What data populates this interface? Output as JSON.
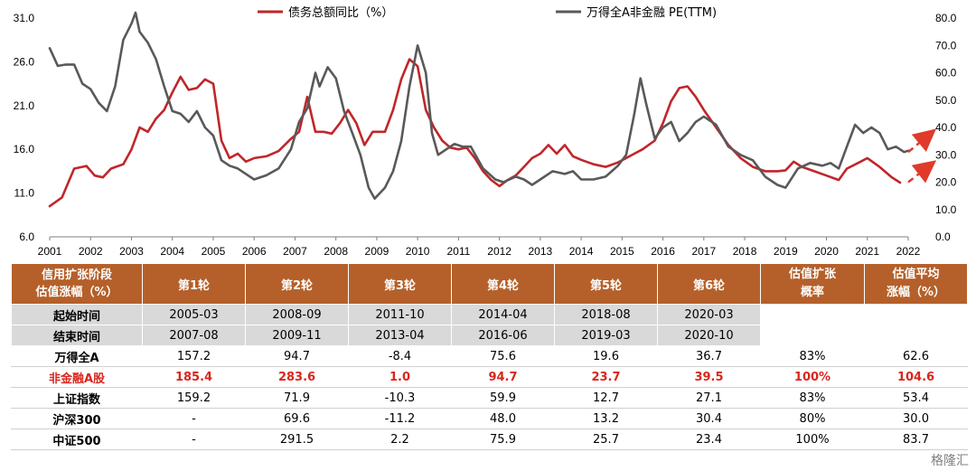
{
  "chart_data": {
    "type": "line",
    "x_ticks": [
      "2001",
      "2002",
      "2003",
      "2004",
      "2005",
      "2006",
      "2007",
      "2008",
      "2009",
      "2010",
      "2011",
      "2012",
      "2013",
      "2014",
      "2015",
      "2016",
      "2017",
      "2018",
      "2019",
      "2020",
      "2021",
      "2022"
    ],
    "y_left": {
      "ticks": [
        "6.0",
        "11.0",
        "16.0",
        "21.0",
        "26.0",
        "31.0"
      ],
      "lim": [
        6,
        31
      ]
    },
    "y_right": {
      "ticks": [
        "0.0",
        "10.0",
        "20.0",
        "30.0",
        "40.0",
        "50.0",
        "60.0",
        "70.0",
        "80.0"
      ],
      "lim": [
        0,
        80
      ]
    },
    "grid": false,
    "legend_position": "top",
    "series": [
      {
        "name": "债务总额同比（%）",
        "axis": "left",
        "color": "#c0262a",
        "points": [
          [
            2001.0,
            9.5
          ],
          [
            2001.3,
            10.5
          ],
          [
            2001.6,
            13.8
          ],
          [
            2001.9,
            14.1
          ],
          [
            2002.1,
            13.0
          ],
          [
            2002.3,
            12.8
          ],
          [
            2002.5,
            13.8
          ],
          [
            2002.8,
            14.3
          ],
          [
            2003.0,
            16.0
          ],
          [
            2003.2,
            18.5
          ],
          [
            2003.4,
            18.0
          ],
          [
            2003.6,
            19.5
          ],
          [
            2003.8,
            20.5
          ],
          [
            2004.0,
            22.5
          ],
          [
            2004.2,
            24.3
          ],
          [
            2004.4,
            22.8
          ],
          [
            2004.6,
            23.0
          ],
          [
            2004.8,
            24.0
          ],
          [
            2005.0,
            23.5
          ],
          [
            2005.2,
            17.0
          ],
          [
            2005.4,
            15.0
          ],
          [
            2005.6,
            15.5
          ],
          [
            2005.8,
            14.6
          ],
          [
            2006.0,
            15.0
          ],
          [
            2006.3,
            15.2
          ],
          [
            2006.6,
            15.8
          ],
          [
            2006.9,
            17.2
          ],
          [
            2007.1,
            18.0
          ],
          [
            2007.3,
            22.0
          ],
          [
            2007.5,
            18.0
          ],
          [
            2007.7,
            18.0
          ],
          [
            2007.9,
            17.8
          ],
          [
            2008.1,
            19.0
          ],
          [
            2008.3,
            20.5
          ],
          [
            2008.5,
            19.0
          ],
          [
            2008.7,
            16.5
          ],
          [
            2008.9,
            18.0
          ],
          [
            2009.2,
            18.0
          ],
          [
            2009.4,
            20.5
          ],
          [
            2009.6,
            24.0
          ],
          [
            2009.8,
            26.3
          ],
          [
            2010.0,
            25.5
          ],
          [
            2010.2,
            20.5
          ],
          [
            2010.4,
            18.5
          ],
          [
            2010.6,
            17.0
          ],
          [
            2010.8,
            16.2
          ],
          [
            2011.0,
            16.0
          ],
          [
            2011.2,
            16.2
          ],
          [
            2011.4,
            15.0
          ],
          [
            2011.6,
            13.5
          ],
          [
            2011.8,
            12.5
          ],
          [
            2012.0,
            11.8
          ],
          [
            2012.2,
            12.5
          ],
          [
            2012.4,
            13.0
          ],
          [
            2012.6,
            14.0
          ],
          [
            2012.8,
            15.0
          ],
          [
            2013.0,
            15.5
          ],
          [
            2013.2,
            16.5
          ],
          [
            2013.4,
            15.5
          ],
          [
            2013.6,
            16.5
          ],
          [
            2013.8,
            15.2
          ],
          [
            2014.0,
            14.8
          ],
          [
            2014.3,
            14.3
          ],
          [
            2014.6,
            14.0
          ],
          [
            2014.9,
            14.5
          ],
          [
            2015.1,
            15.0
          ],
          [
            2015.3,
            15.5
          ],
          [
            2015.5,
            16.0
          ],
          [
            2015.8,
            17.0
          ],
          [
            2016.0,
            19.0
          ],
          [
            2016.2,
            21.5
          ],
          [
            2016.4,
            23.0
          ],
          [
            2016.6,
            23.2
          ],
          [
            2016.8,
            22.0
          ],
          [
            2017.0,
            20.5
          ],
          [
            2017.3,
            18.5
          ],
          [
            2017.6,
            16.5
          ],
          [
            2017.9,
            15.0
          ],
          [
            2018.2,
            14.0
          ],
          [
            2018.5,
            13.5
          ],
          [
            2018.8,
            13.5
          ],
          [
            2019.0,
            13.6
          ],
          [
            2019.2,
            14.6
          ],
          [
            2019.4,
            14.0
          ],
          [
            2019.7,
            13.5
          ],
          [
            2020.0,
            13.0
          ],
          [
            2020.3,
            12.5
          ],
          [
            2020.5,
            13.8
          ],
          [
            2020.8,
            14.5
          ],
          [
            2021.0,
            15.0
          ],
          [
            2021.3,
            14.0
          ],
          [
            2021.6,
            12.8
          ],
          [
            2021.8,
            12.2
          ]
        ]
      },
      {
        "name": "万得全A非金融 PE(TTM)",
        "axis": "right",
        "color": "#595959",
        "points": [
          [
            2001.0,
            69.0
          ],
          [
            2001.2,
            62.5
          ],
          [
            2001.4,
            63.0
          ],
          [
            2001.6,
            63.0
          ],
          [
            2001.8,
            56.0
          ],
          [
            2002.0,
            54.0
          ],
          [
            2002.2,
            49.0
          ],
          [
            2002.4,
            46.0
          ],
          [
            2002.6,
            55.0
          ],
          [
            2002.8,
            72.0
          ],
          [
            2003.0,
            78.0
          ],
          [
            2003.1,
            82.0
          ],
          [
            2003.2,
            75.0
          ],
          [
            2003.4,
            71.0
          ],
          [
            2003.6,
            65.0
          ],
          [
            2003.8,
            55.0
          ],
          [
            2004.0,
            46.0
          ],
          [
            2004.2,
            45.0
          ],
          [
            2004.4,
            42.0
          ],
          [
            2004.6,
            46.0
          ],
          [
            2004.8,
            40.0
          ],
          [
            2005.0,
            37.0
          ],
          [
            2005.2,
            28.0
          ],
          [
            2005.4,
            26.0
          ],
          [
            2005.6,
            25.0
          ],
          [
            2005.8,
            23.0
          ],
          [
            2006.0,
            21.0
          ],
          [
            2006.3,
            22.5
          ],
          [
            2006.6,
            25.0
          ],
          [
            2006.9,
            32.0
          ],
          [
            2007.1,
            42.0
          ],
          [
            2007.3,
            47.0
          ],
          [
            2007.5,
            60.0
          ],
          [
            2007.6,
            55.0
          ],
          [
            2007.8,
            62.0
          ],
          [
            2008.0,
            58.0
          ],
          [
            2008.2,
            46.0
          ],
          [
            2008.4,
            38.0
          ],
          [
            2008.6,
            30.0
          ],
          [
            2008.8,
            18.0
          ],
          [
            2008.95,
            14.0
          ],
          [
            2009.2,
            18.0
          ],
          [
            2009.4,
            24.0
          ],
          [
            2009.6,
            35.0
          ],
          [
            2009.8,
            55.0
          ],
          [
            2010.0,
            70.0
          ],
          [
            2010.2,
            60.0
          ],
          [
            2010.35,
            38.0
          ],
          [
            2010.5,
            30.0
          ],
          [
            2010.7,
            32.0
          ],
          [
            2010.9,
            34.0
          ],
          [
            2011.1,
            33.0
          ],
          [
            2011.3,
            33.0
          ],
          [
            2011.6,
            25.0
          ],
          [
            2011.9,
            21.0
          ],
          [
            2012.1,
            20.0
          ],
          [
            2012.4,
            22.0
          ],
          [
            2012.6,
            21.0
          ],
          [
            2012.8,
            19.0
          ],
          [
            2013.0,
            21.0
          ],
          [
            2013.3,
            24.0
          ],
          [
            2013.6,
            23.0
          ],
          [
            2013.8,
            24.0
          ],
          [
            2014.0,
            21.0
          ],
          [
            2014.3,
            21.0
          ],
          [
            2014.6,
            22.0
          ],
          [
            2014.9,
            26.0
          ],
          [
            2015.1,
            30.0
          ],
          [
            2015.3,
            45.0
          ],
          [
            2015.45,
            58.0
          ],
          [
            2015.6,
            48.0
          ],
          [
            2015.8,
            36.0
          ],
          [
            2016.0,
            40.0
          ],
          [
            2016.2,
            42.0
          ],
          [
            2016.4,
            35.0
          ],
          [
            2016.6,
            38.0
          ],
          [
            2016.8,
            42.0
          ],
          [
            2017.0,
            44.0
          ],
          [
            2017.3,
            41.0
          ],
          [
            2017.6,
            33.0
          ],
          [
            2017.9,
            30.0
          ],
          [
            2018.2,
            28.0
          ],
          [
            2018.5,
            22.0
          ],
          [
            2018.8,
            19.0
          ],
          [
            2019.0,
            18.0
          ],
          [
            2019.3,
            25.0
          ],
          [
            2019.6,
            27.0
          ],
          [
            2019.9,
            26.0
          ],
          [
            2020.1,
            27.0
          ],
          [
            2020.3,
            25.0
          ],
          [
            2020.5,
            33.0
          ],
          [
            2020.7,
            41.0
          ],
          [
            2020.9,
            38.0
          ],
          [
            2021.1,
            40.0
          ],
          [
            2021.3,
            38.0
          ],
          [
            2021.5,
            32.0
          ],
          [
            2021.7,
            33.0
          ],
          [
            2021.9,
            31.0
          ],
          [
            2022.0,
            31.5
          ]
        ]
      }
    ],
    "annotations": [
      {
        "type": "dashed-arrow",
        "color": "#e03a2a",
        "direction": "up-right",
        "start": [
          2022.0,
          31.0
        ],
        "end": [
          2022.6,
          38.5
        ],
        "axis": "right"
      },
      {
        "type": "dashed-arrow",
        "color": "#e03a2a",
        "direction": "up-right",
        "start": [
          2022.0,
          20.0
        ],
        "end": [
          2022.6,
          27.0
        ],
        "axis": "right"
      }
    ]
  },
  "table": {
    "corner_label_line1": "信用扩张阶段",
    "corner_label_line2": "估值涨幅（%）",
    "rounds": [
      "第1轮",
      "第2轮",
      "第3轮",
      "第4轮",
      "第5轮",
      "第6轮"
    ],
    "prob_header_line1": "估值扩张",
    "prob_header_line2": "概率",
    "avg_header_line1": "估值平均",
    "avg_header_line2": "涨幅（%）",
    "start_label": "起始时间",
    "start_dates": [
      "2005-03",
      "2008-09",
      "2011-10",
      "2014-04",
      "2018-08",
      "2020-03"
    ],
    "end_label": "结束时间",
    "end_dates": [
      "2007-08",
      "2009-11",
      "2013-04",
      "2016-06",
      "2019-03",
      "2020-10"
    ],
    "rows": [
      {
        "label": "万得全A",
        "values": [
          "157.2",
          "94.7",
          "-8.4",
          "75.6",
          "19.6",
          "36.7"
        ],
        "prob": "83%",
        "avg": "62.6",
        "highlight": false
      },
      {
        "label": "非金融A股",
        "values": [
          "185.4",
          "283.6",
          "1.0",
          "94.7",
          "23.7",
          "39.5"
        ],
        "prob": "100%",
        "avg": "104.6",
        "highlight": true
      },
      {
        "label": "上证指数",
        "values": [
          "159.2",
          "71.9",
          "-10.3",
          "59.9",
          "12.7",
          "27.1"
        ],
        "prob": "83%",
        "avg": "53.4",
        "highlight": false
      },
      {
        "label": "沪深300",
        "values": [
          "-",
          "69.6",
          "-11.2",
          "48.0",
          "13.2",
          "30.4"
        ],
        "prob": "80%",
        "avg": "30.0",
        "highlight": false
      },
      {
        "label": "中证500",
        "values": [
          "-",
          "291.5",
          "2.2",
          "75.9",
          "25.7",
          "23.4"
        ],
        "prob": "100%",
        "avg": "83.7",
        "highlight": false
      }
    ]
  },
  "watermark": "格隆汇"
}
